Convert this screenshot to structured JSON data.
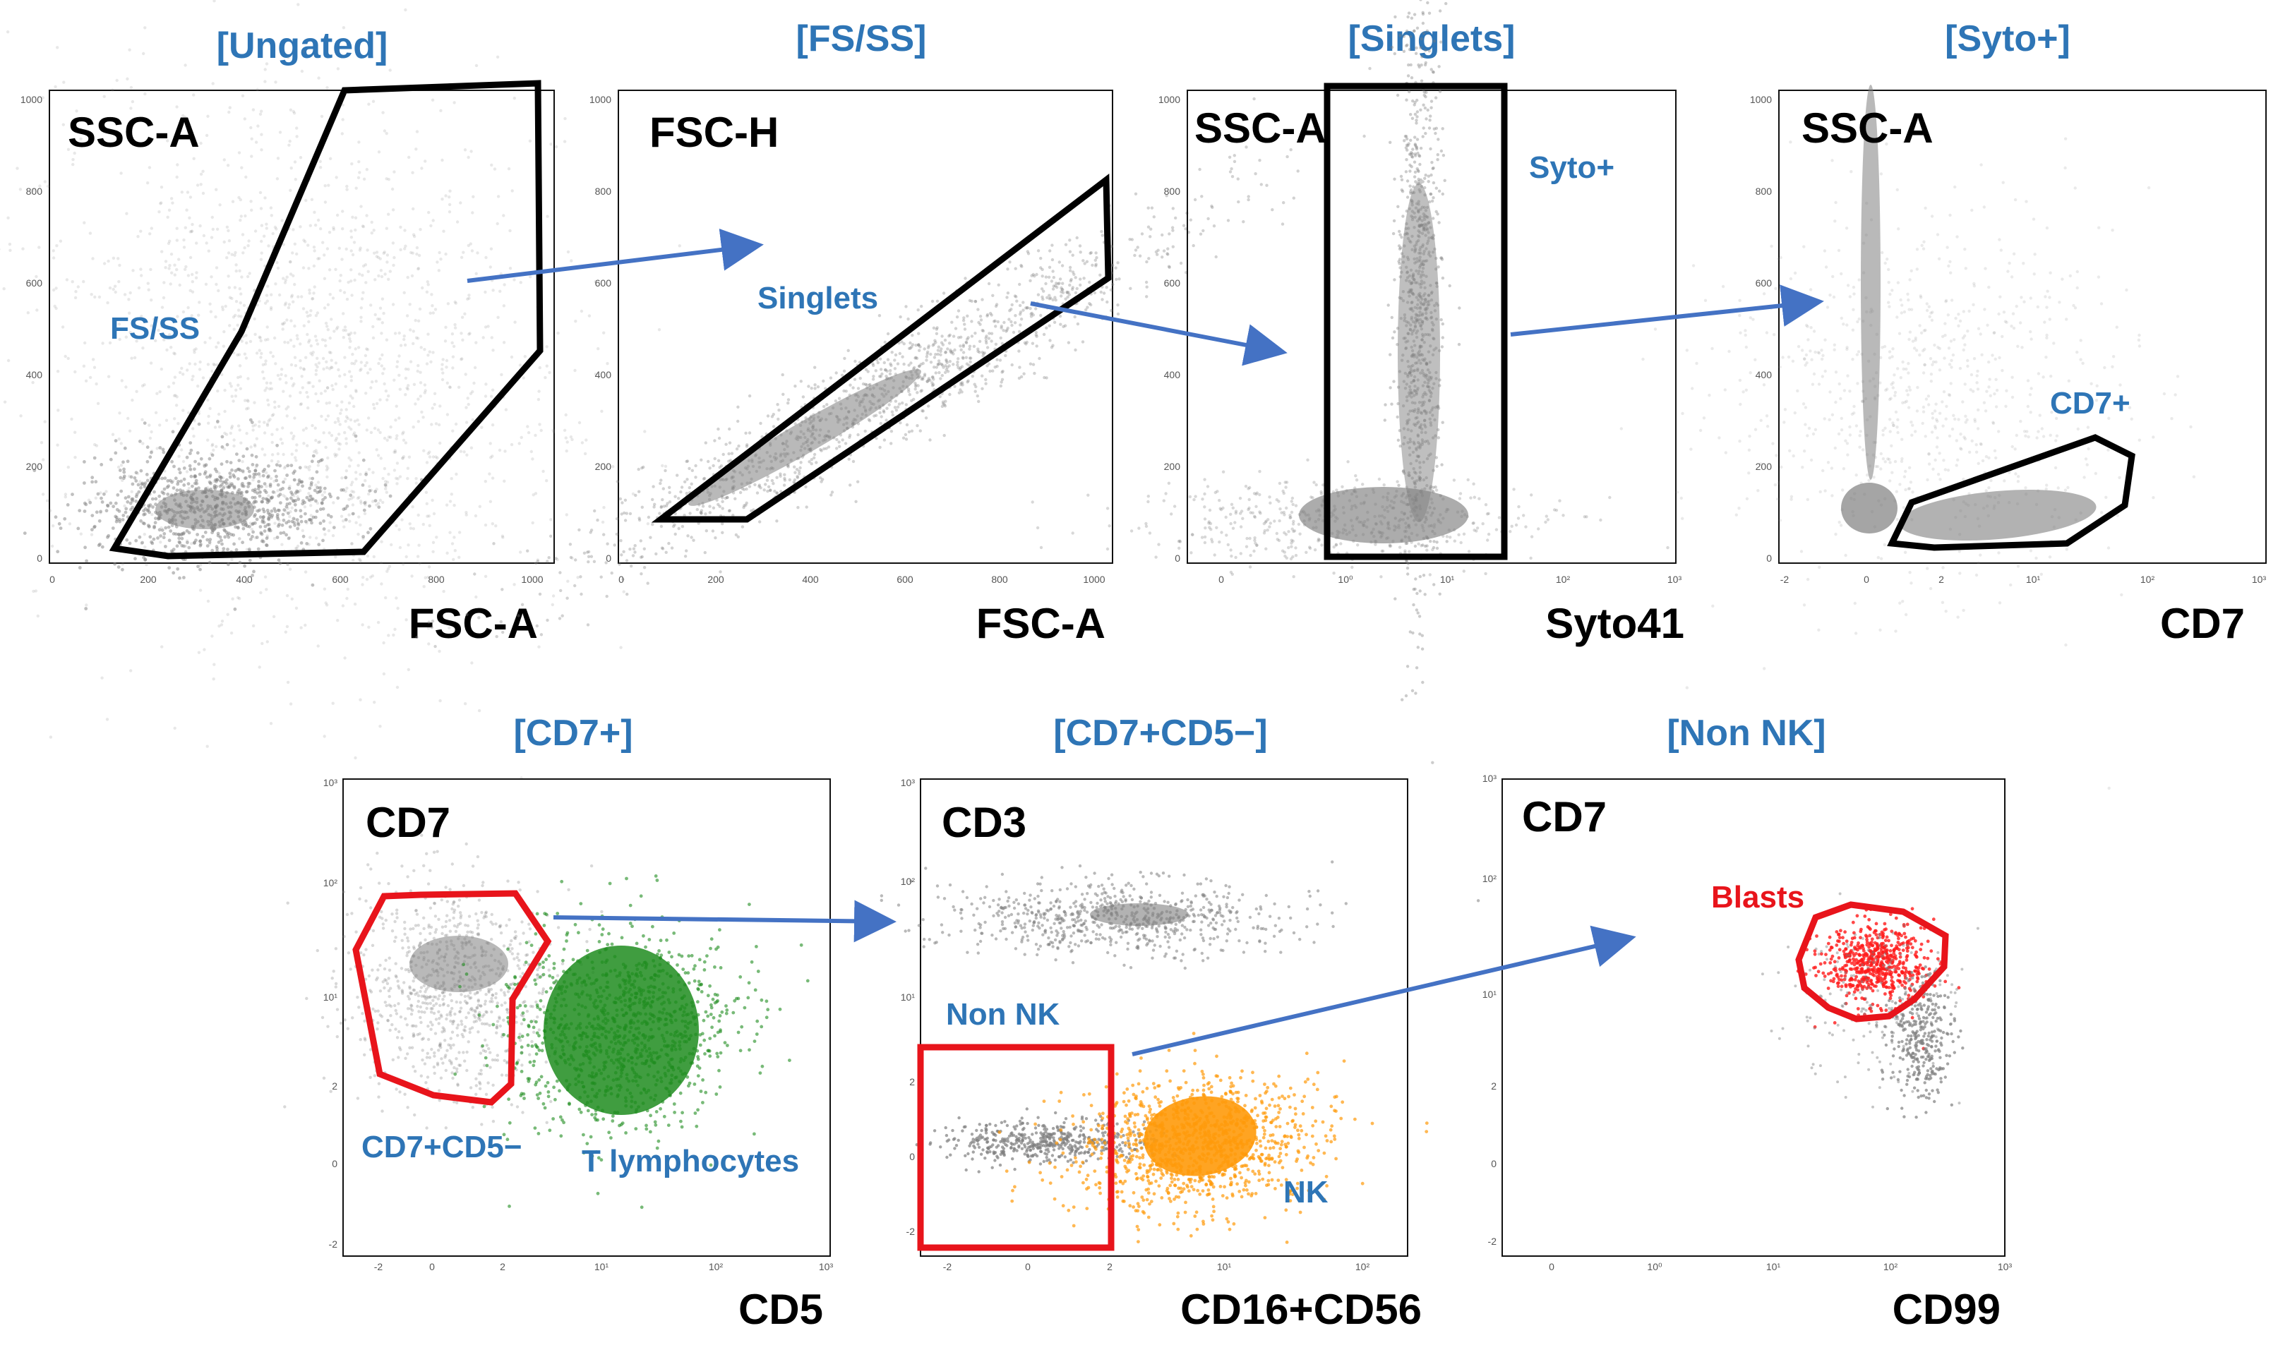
{
  "colors": {
    "title": "#2e75b6",
    "events": "#7f7f7f",
    "gate_black": "#000000",
    "gate_red": "#e8141b",
    "arrow": "#4472c4",
    "t_lymphocytes": "#1e8c1e",
    "nk": "#ff9a0a",
    "blasts": "#ff1a1a"
  },
  "panels": [
    {
      "title": "[Ungated]",
      "ylabel": "SSC-A",
      "xlabel": "FSC-A",
      "xticks": [
        "0",
        "200",
        "400",
        "600",
        "800",
        "1000"
      ],
      "yticks": [
        "0",
        "200",
        "400",
        "600",
        "800",
        "1000"
      ],
      "gates": [
        {
          "label": "FS/SS",
          "color": "black"
        }
      ]
    },
    {
      "title": "[FS/SS]",
      "ylabel": "FSC-H",
      "xlabel": "FSC-A",
      "xticks": [
        "0",
        "200",
        "400",
        "600",
        "800",
        "1000"
      ],
      "yticks": [
        "0",
        "200",
        "400",
        "600",
        "800",
        "1000"
      ],
      "gates": [
        {
          "label": "Singlets",
          "color": "black"
        }
      ]
    },
    {
      "title": "[Singlets]",
      "ylabel": "SSC-A",
      "xlabel": "Syto41",
      "xticks": [
        "0",
        "10⁰",
        "10¹",
        "10²",
        "10³"
      ],
      "yticks": [
        "0",
        "200",
        "400",
        "600",
        "800",
        "1000"
      ],
      "gates": [
        {
          "label": "Syto+",
          "color": "black"
        }
      ]
    },
    {
      "title": "[Syto+]",
      "ylabel": "SSC-A",
      "xlabel": "CD7",
      "xticks": [
        "-2",
        "0",
        "2",
        "10¹",
        "10²",
        "10³"
      ],
      "yticks": [
        "0",
        "200",
        "400",
        "600",
        "800",
        "1000"
      ],
      "gates": [
        {
          "label": "CD7+",
          "color": "black"
        }
      ]
    },
    {
      "title": "[CD7+]",
      "ylabel": "CD7",
      "xlabel": "CD5",
      "xticks": [
        "-2",
        "0",
        "2",
        "10¹",
        "10²",
        "10³"
      ],
      "yticks": [
        "-2",
        "0",
        "2",
        "10¹",
        "10²",
        "10³"
      ],
      "gates": [
        {
          "label": "CD7+CD5−",
          "color": "red"
        },
        {
          "label": "T lymphocytes",
          "color": "green"
        }
      ]
    },
    {
      "title": "[CD7+CD5−]",
      "ylabel": "CD3",
      "xlabel": "CD16+CD56",
      "xticks": [
        "-2",
        "0",
        "2",
        "10¹",
        "10²"
      ],
      "yticks": [
        "-2",
        "0",
        "2",
        "10¹",
        "10²",
        "10³"
      ],
      "gates": [
        {
          "label": "Non NK",
          "color": "red"
        },
        {
          "label": "NK",
          "color": "orange"
        }
      ]
    },
    {
      "title": "[Non NK]",
      "ylabel": "CD7",
      "xlabel": "CD99",
      "xticks": [
        "0",
        "10⁰",
        "10¹",
        "10²",
        "10³"
      ],
      "yticks": [
        "-2",
        "0",
        "2",
        "10¹",
        "10²",
        "10³"
      ],
      "gates": [
        {
          "label": "Blasts",
          "color": "red"
        }
      ]
    }
  ]
}
